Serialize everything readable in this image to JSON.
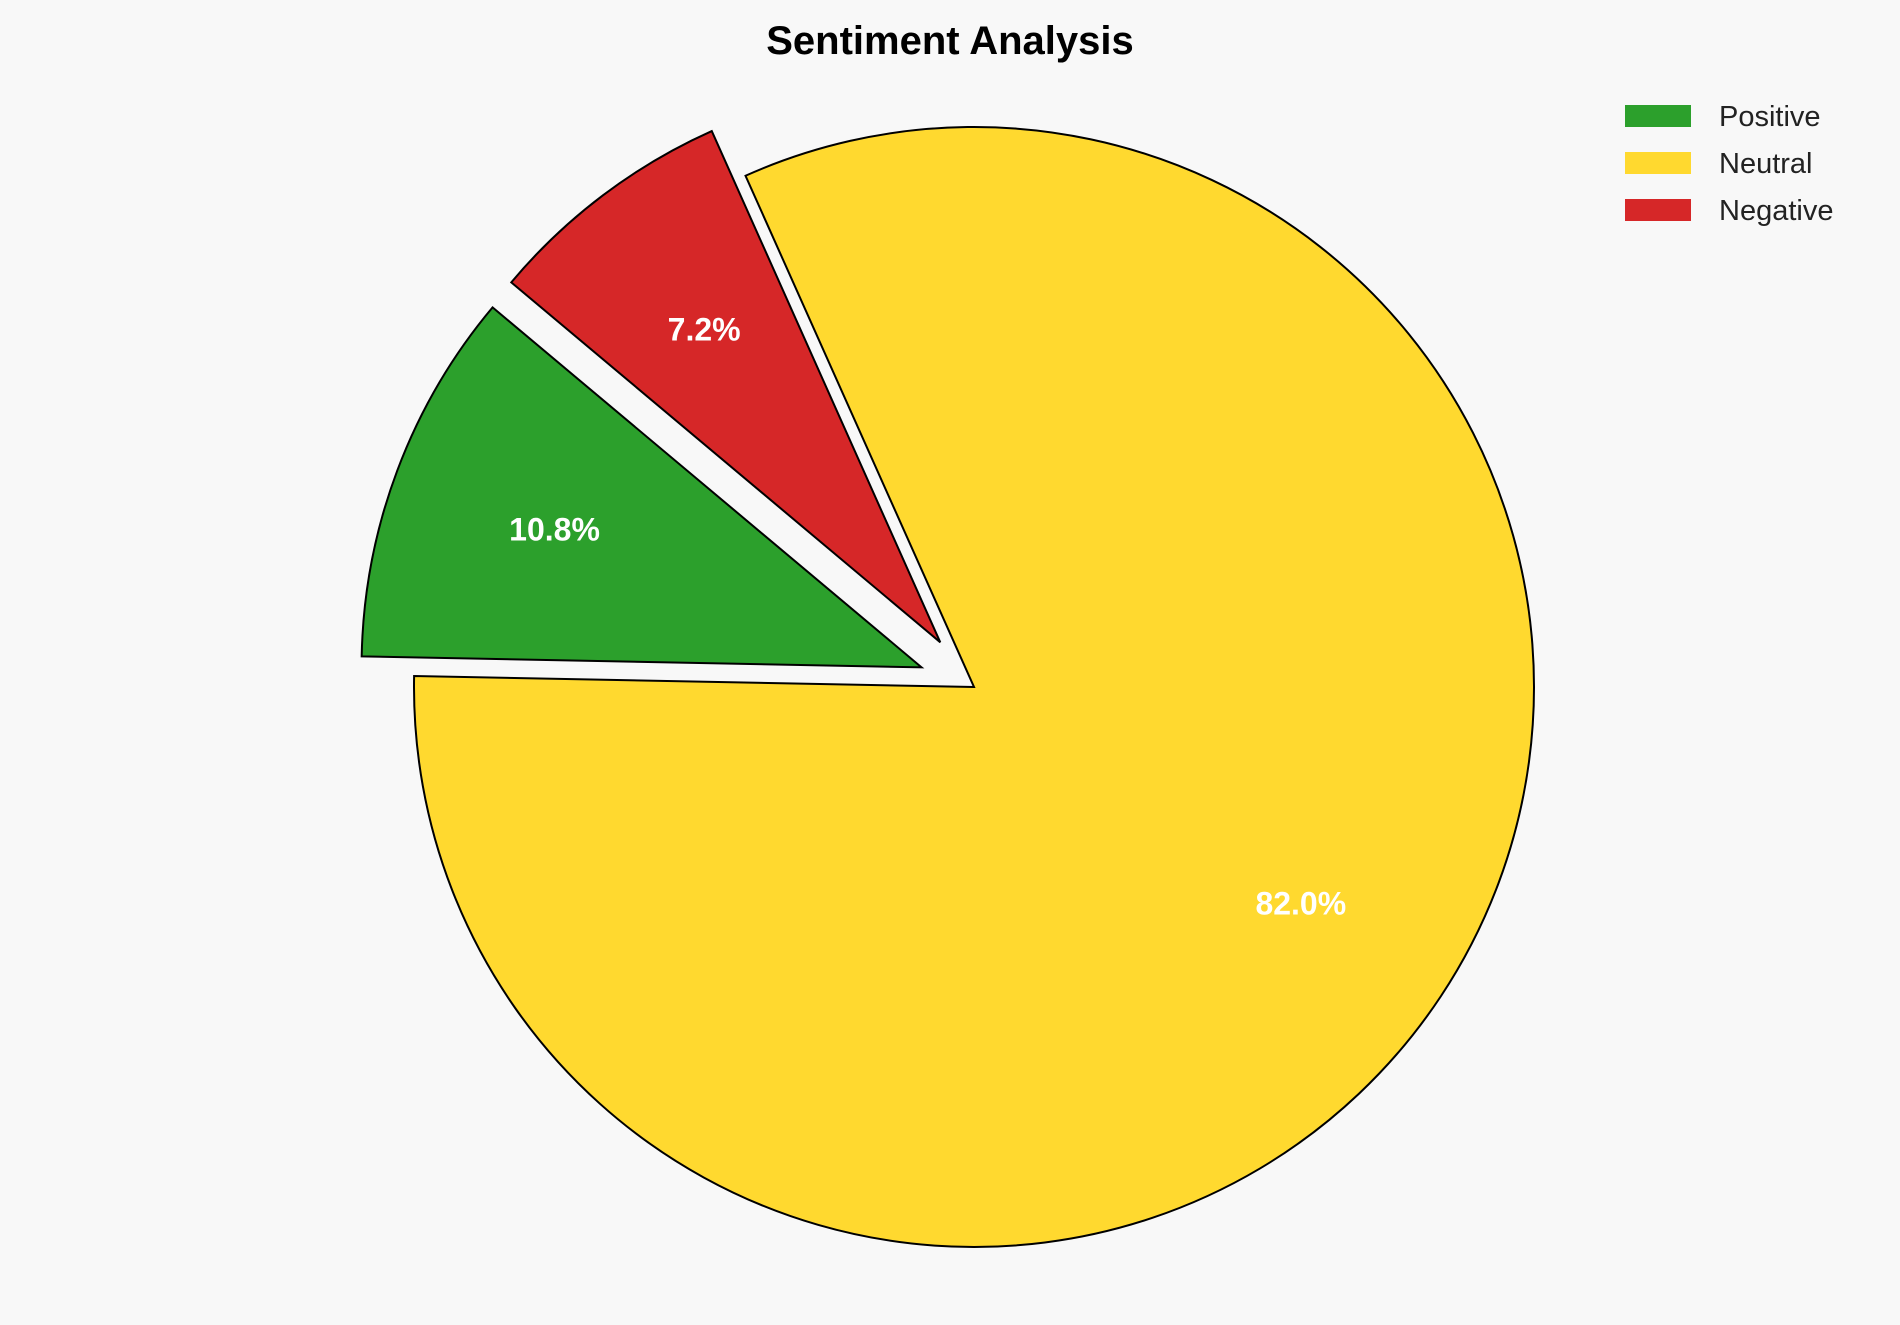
{
  "chart_data": {
    "type": "pie",
    "title": "Sentiment Analysis",
    "categories": [
      "Positive",
      "Neutral",
      "Negative"
    ],
    "values": [
      10.8,
      82.0,
      7.2
    ],
    "labels": [
      "10.8%",
      "82.0%",
      "7.2%"
    ],
    "colors": [
      "#2ca02c",
      "#ffd92f",
      "#d62728"
    ],
    "exploded": [
      true,
      false,
      true
    ],
    "start_angle_deg": 140,
    "direction": "counterclockwise",
    "edge_color": "#000000",
    "label_color": "#ffffff",
    "legend_placement": "top-right",
    "background": "#f8f8f8"
  }
}
